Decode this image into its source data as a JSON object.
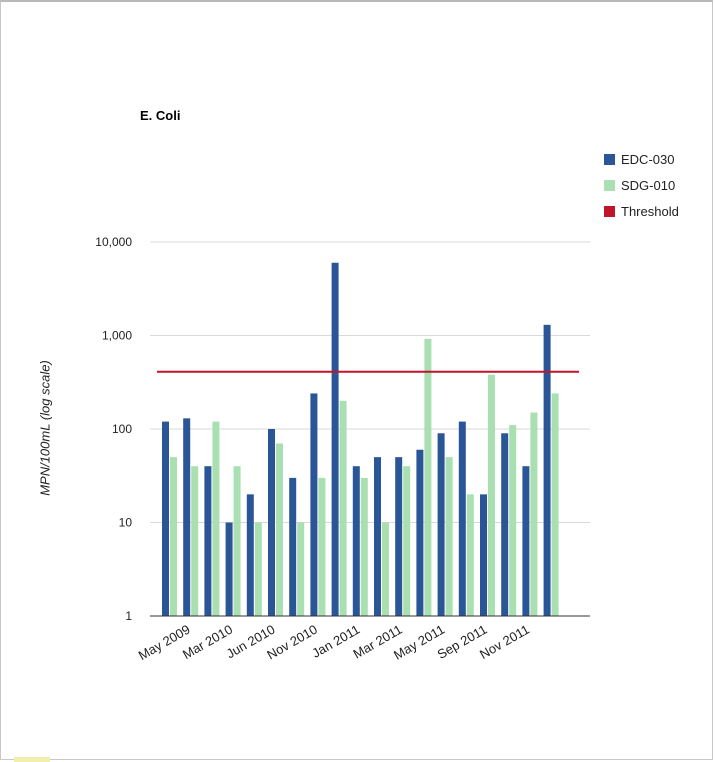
{
  "chart_data": {
    "type": "bar",
    "title": "E. Coli",
    "ylabel": "MPN/100mL (log scale)",
    "xlabel": "",
    "yscale": "log",
    "ylim": [
      1,
      10000
    ],
    "yticks": [
      {
        "value": 1,
        "label": "1"
      },
      {
        "value": 10,
        "label": "10"
      },
      {
        "value": 100,
        "label": "100"
      },
      {
        "value": 1000,
        "label": "1,000"
      },
      {
        "value": 10000,
        "label": "10,000"
      }
    ],
    "xtick_labels": [
      "May 2009",
      "Mar 2010",
      "Jun 2010",
      "Nov 2010",
      "Jan 2011",
      "Mar 2011",
      "May 2011",
      "Sep 2011",
      "Nov 2011"
    ],
    "xtick_positions": [
      1,
      3,
      5,
      7,
      9,
      11,
      13,
      15,
      17
    ],
    "series": [
      {
        "name": "EDC-030",
        "color": "#2a5596",
        "values": [
          120,
          130,
          40,
          10,
          20,
          100,
          30,
          240,
          6000,
          40,
          50,
          50,
          60,
          90,
          120,
          20,
          90,
          40,
          1300
        ]
      },
      {
        "name": "SDG-010",
        "color": "#a9dfb1",
        "values": [
          50,
          40,
          120,
          40,
          10,
          70,
          10,
          30,
          200,
          30,
          10,
          40,
          920,
          50,
          20,
          380,
          110,
          150,
          240
        ]
      }
    ],
    "threshold": {
      "name": "Threshold",
      "color": "#c0142a",
      "value": 410
    },
    "grid": true,
    "legend_position": "right"
  }
}
